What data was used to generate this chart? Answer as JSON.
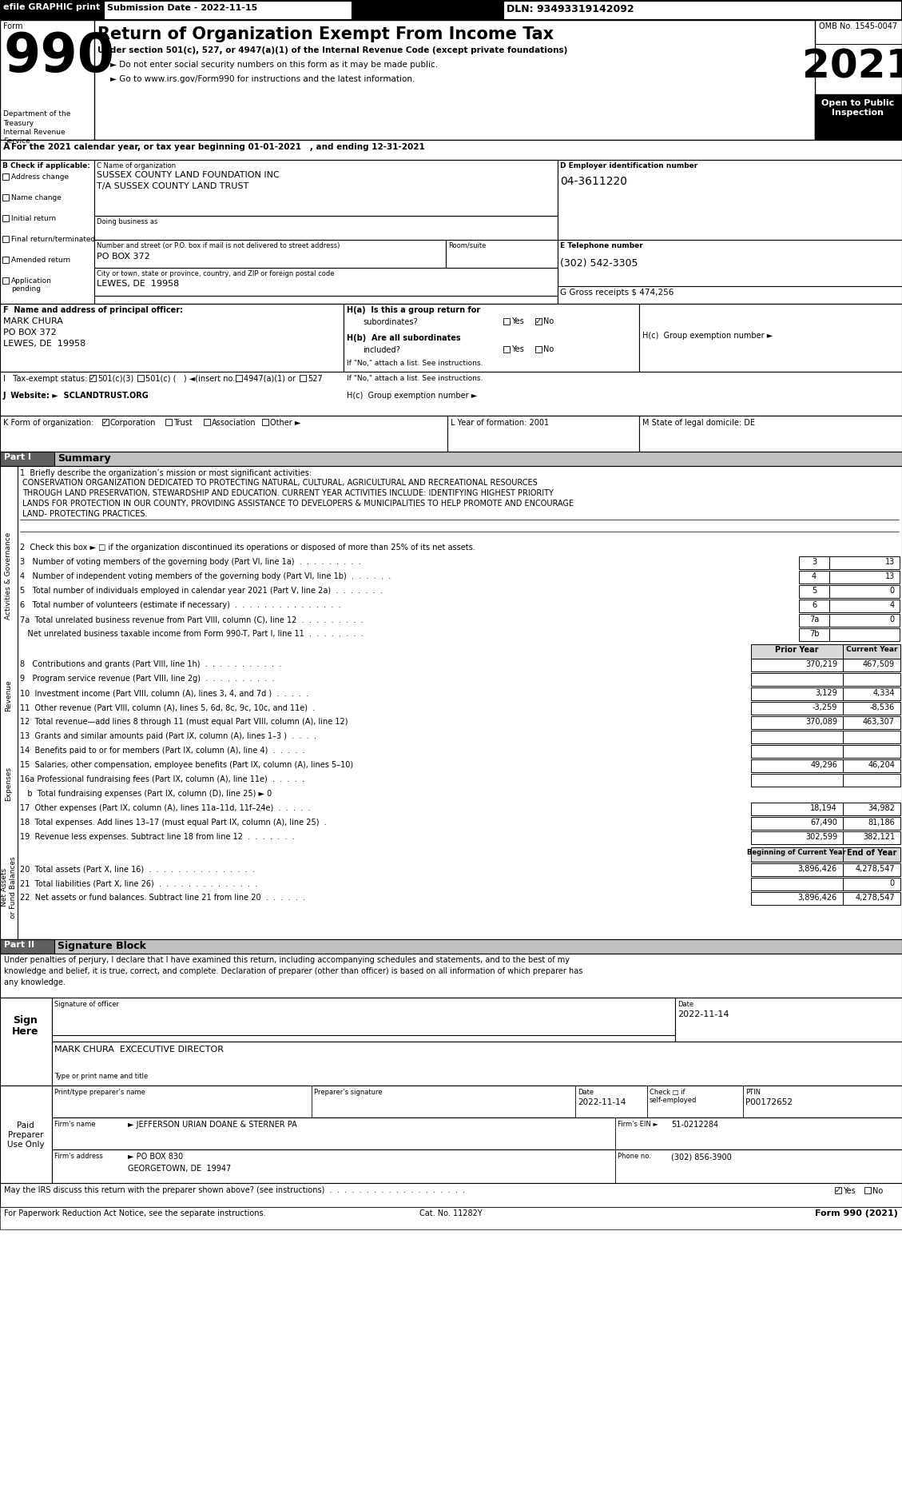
{
  "header_bar_text": "efile GRAPHIC print",
  "submission_date": "Submission Date - 2022-11-15",
  "dln": "DLN: 93493319142092",
  "form_number": "990",
  "form_label": "Form",
  "title": "Return of Organization Exempt From Income Tax",
  "subtitle1": "Under section 501(c), 527, or 4947(a)(1) of the Internal Revenue Code (except private foundations)",
  "subtitle2": "► Do not enter social security numbers on this form as it may be made public.",
  "subtitle3": "► Go to www.irs.gov/Form990 for instructions and the latest information.",
  "omb": "OMB No. 1545-0047",
  "year": "2021",
  "open_to_public": "Open to Public\nInspection",
  "dept1": "Department of the",
  "dept2": "Treasury",
  "dept3": "Internal Revenue",
  "dept4": "Service",
  "line_a": "For the 2021 calendar year, or tax year beginning 01-01-2021   , and ending 12-31-2021",
  "b_label": "B Check if applicable:",
  "check_options": [
    "Address change",
    "Name change",
    "Initial return",
    "Final return/terminated",
    "Amended return",
    "Application\npending"
  ],
  "c_label": "C Name of organization",
  "org_name1": "SUSSEX COUNTY LAND FOUNDATION INC",
  "org_name2": "T/A SUSSEX COUNTY LAND TRUST",
  "dba_label": "Doing business as",
  "street_label": "Number and street (or P.O. box if mail is not delivered to street address)",
  "room_label": "Room/suite",
  "street_value": "PO BOX 372",
  "city_label": "City or town, state or province, country, and ZIP or foreign postal code",
  "city_value": "LEWES, DE  19958",
  "d_label": "D Employer identification number",
  "ein": "04-3611220",
  "e_label": "E Telephone number",
  "phone": "(302) 542-3305",
  "g_label": "G Gross receipts $ 474,256",
  "f_label": "F  Name and address of principal officer:",
  "officer_name": "MARK CHURA",
  "officer_addr1": "PO BOX 372",
  "officer_addr2": "LEWES, DE  19958",
  "ha_label": "H(a)  Is this a group return for",
  "ha_sub": "subordinates?",
  "hb_label": "H(b)  Are all subordinates",
  "hb_sub": "included?",
  "hb_note": "If \"No,\" attach a list. See instructions.",
  "hc_label": "H(c)  Group exemption number ►",
  "i_label": "I   Tax-exempt status:",
  "i_501c3": "501(c)(3)",
  "i_501c": "501(c) (   ) ◄(insert no.)",
  "i_4947": "4947(a)(1) or",
  "i_527": "527",
  "j_label": "J  Website: ►  SCLANDTRUST.ORG",
  "k_label": "K Form of organization:",
  "k_corp": "Corporation",
  "k_trust": "Trust",
  "k_assoc": "Association",
  "k_other": "Other ►",
  "l_label": "L Year of formation: 2001",
  "m_label": "M State of legal domicile: DE",
  "part1_label": "Part I",
  "part1_title": "Summary",
  "line1_label": "1  Briefly describe the organization’s mission or most significant activities:",
  "mission_lines": [
    "CONSERVATION ORGANIZATION DEDICATED TO PROTECTING NATURAL, CULTURAL, AGRICULTURAL AND RECREATIONAL RESOURCES",
    "THROUGH LAND PRESERVATION, STEWARDSHIP AND EDUCATION. CURRENT YEAR ACTIVITIES INCLUDE: IDENTIFYING HIGHEST PRIORITY",
    "LANDS FOR PROTECTION IN OUR COUNTY, PROVIDING ASSISTANCE TO DEVELOPERS & MUNICIPALITIES TO HELP PROMOTE AND ENCOURAGE",
    "LAND- PROTECTING PRACTICES."
  ],
  "line2": "2  Check this box ► □ if the organization discontinued its operations or disposed of more than 25% of its net assets.",
  "line3_text": "3   Number of voting members of the governing body (Part VI, line 1a)  .  .  .  .  .  .  .  .  .",
  "line4_text": "4   Number of independent voting members of the governing body (Part VI, line 1b)  .  .  .  .  .  .",
  "line5_text": "5   Total number of individuals employed in calendar year 2021 (Part V, line 2a)  .  .  .  .  .  .  .",
  "line6_text": "6   Total number of volunteers (estimate if necessary)  .  .  .  .  .  .  .  .  .  .  .  .  .  .  .",
  "line7a_text": "7a  Total unrelated business revenue from Part VIII, column (C), line 12  .  .  .  .  .  .  .  .  .",
  "line7b_text": "   Net unrelated business taxable income from Form 990-T, Part I, line 11  .  .  .  .  .  .  .  .",
  "line3_num": "3",
  "line3_val": "13",
  "line4_num": "4",
  "line4_val": "13",
  "line5_num": "5",
  "line5_val": "0",
  "line6_num": "6",
  "line6_val": "4",
  "line7a_num": "7a",
  "line7a_val": "0",
  "line7b_num": "7b",
  "line7b_val": "",
  "prior_year_label": "Prior Year",
  "current_year_label": "Current Year",
  "line8_text": "8   Contributions and grants (Part VIII, line 1h)  .  .  .  .  .  .  .  .  .  .  .",
  "line9_text": "9   Program service revenue (Part VIII, line 2g)  .  .  .  .  .  .  .  .  .  .",
  "line10_text": "10  Investment income (Part VIII, column (A), lines 3, 4, and 7d )  .  .  .  .  .",
  "line11_text": "11  Other revenue (Part VIII, column (A), lines 5, 6d, 8c, 9c, 10c, and 11e)  .",
  "line12_text": "12  Total revenue—add lines 8 through 11 (must equal Part VIII, column (A), line 12)",
  "line8_prior": "370,219",
  "line8_current": "467,509",
  "line9_prior": "",
  "line9_current": "",
  "line10_prior": "3,129",
  "line10_current": "4,334",
  "line11_prior": "-3,259",
  "line11_current": "-8,536",
  "line12_prior": "370,089",
  "line12_current": "463,307",
  "line13_text": "13  Grants and similar amounts paid (Part IX, column (A), lines 1–3 )  .  .  .  .",
  "line14_text": "14  Benefits paid to or for members (Part IX, column (A), line 4)  .  .  .  .  .",
  "line15_text": "15  Salaries, other compensation, employee benefits (Part IX, column (A), lines 5–10)",
  "line16a_text": "16a Professional fundraising fees (Part IX, column (A), line 11e)  .  .  .  .  .",
  "line16b_text": "   b  Total fundraising expenses (Part IX, column (D), line 25) ► 0",
  "line17_text": "17  Other expenses (Part IX, column (A), lines 11a–11d, 11f–24e)  .  .  .  .  .",
  "line18_text": "18  Total expenses. Add lines 13–17 (must equal Part IX, column (A), line 25)  .",
  "line19_text": "19  Revenue less expenses. Subtract line 18 from line 12  .  .  .  .  .  .  .",
  "line13_prior": "",
  "line13_current": "",
  "line14_prior": "",
  "line14_current": "",
  "line15_prior": "49,296",
  "line15_current": "46,204",
  "line16a_prior": "",
  "line16a_current": "",
  "line17_prior": "18,194",
  "line17_current": "34,982",
  "line18_prior": "67,490",
  "line18_current": "81,186",
  "line19_prior": "302,599",
  "line19_current": "382,121",
  "beg_year_label": "Beginning of Current Year",
  "end_year_label": "End of Year",
  "line20_text": "20  Total assets (Part X, line 16)  .  .  .  .  .  .  .  .  .  .  .  .  .  .  .",
  "line21_text": "21  Total liabilities (Part X, line 26)  .  .  .  .  .  .  .  .  .  .  .  .  .  .",
  "line22_text": "22  Net assets or fund balances. Subtract line 21 from line 20  .  .  .  .  .  .",
  "line20_beg": "3,896,426",
  "line20_end": "4,278,547",
  "line21_beg": "",
  "line21_end": "0",
  "line22_beg": "3,896,426",
  "line22_end": "4,278,547",
  "part2_label": "Part II",
  "part2_title": "Signature Block",
  "sig_text1": "Under penalties of perjury, I declare that I have examined this return, including accompanying schedules and statements, and to the best of my",
  "sig_text2": "knowledge and belief, it is true, correct, and complete. Declaration of preparer (other than officer) is based on all information of which preparer has",
  "sig_text3": "any knowledge.",
  "sign_here_line1": "Sign",
  "sign_here_line2": "Here",
  "sig_officer_label": "Signature of officer",
  "sig_date_label": "Date",
  "sig_date": "2022-11-14",
  "sig_name_label": "Type or print name and title",
  "sig_name": "MARK CHURA  EXCECUTIVE DIRECTOR",
  "preparer_name_label": "Print/type preparer’s name",
  "preparer_sig_label": "Preparer’s signature",
  "preparer_date_label": "Date",
  "preparer_check_label": "Check □ if\nself-employed",
  "preparer_ptin_label": "PTIN",
  "preparer_date": "2022-11-14",
  "preparer_ptin": "P00172652",
  "firm_name_label": "Firm’s name",
  "firm_name": "► JEFFERSON URIAN DOANE & STERNER PA",
  "firm_ein_label": "Firm’s EIN ►",
  "firm_ein": "51-0212284",
  "firm_addr_label": "Firm’s address",
  "firm_addr": "► PO BOX 830",
  "firm_city": "GEORGETOWN, DE  19947",
  "firm_phone_label": "Phone no.",
  "firm_phone": "(302) 856-3900",
  "paid_label": "Paid\nPreparer\nUse Only",
  "irs_discuss": "May the IRS discuss this return with the preparer shown above? (see instructions)  .  .  .  .  .  .  .  .  .  .  .  .  .  .  .  .  .  .  .",
  "footer_left": "For Paperwork Reduction Act Notice, see the separate instructions.",
  "footer_cat": "Cat. No. 11282Y",
  "footer_right": "Form 990 (2021)",
  "sidebar_ag": "Activities & Governance",
  "sidebar_rev": "Revenue",
  "sidebar_exp": "Expenses",
  "sidebar_net": "Net Assets\nor Fund Balances"
}
